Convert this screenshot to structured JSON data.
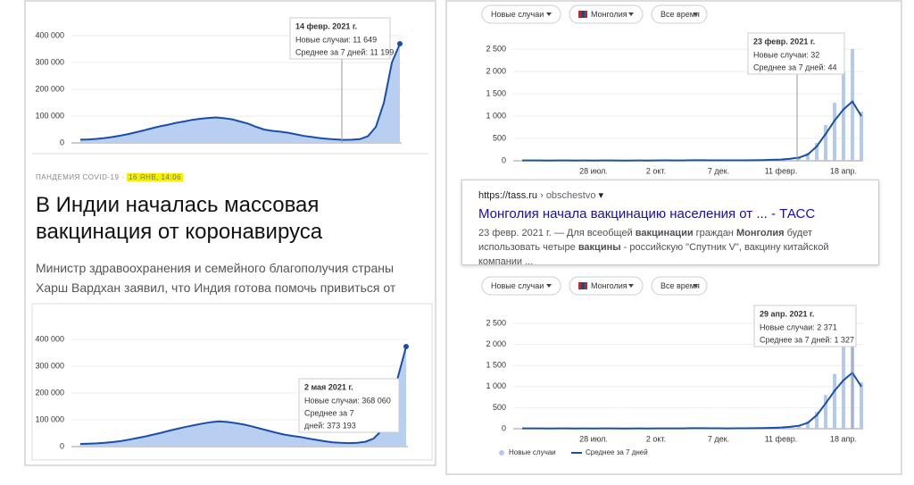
{
  "chart_data": [
    {
      "type": "area",
      "color": "#1a4fa8",
      "area_color": "#b9cff2",
      "values": [
        12000,
        13000,
        15000,
        18000,
        22000,
        27000,
        33000,
        40000,
        47000,
        55000,
        62000,
        68000,
        75000,
        80000,
        86000,
        90000,
        93000,
        95000,
        92000,
        88000,
        80000,
        72000,
        60000,
        50000,
        45000,
        42000,
        38000,
        32000,
        26000,
        22000,
        18000,
        15000,
        13000,
        11199,
        12000,
        14000,
        25000,
        60000,
        150000,
        300000,
        370000
      ],
      "ylim": [
        0,
        400000
      ],
      "yticks": [
        0,
        {
          "value": 100000,
          "label": "100 000"
        },
        {
          "value": 200000,
          "label": "200 000"
        },
        {
          "value": 300000,
          "label": "300 000"
        },
        {
          "value": 400000,
          "label": "400 000"
        }
      ],
      "tooltip": {
        "date": "14 февр. 2021 г.",
        "lines": [
          "Новые случаи: 11 649",
          "Среднее за 7 дней: 11 199"
        ]
      }
    },
    {
      "type": "area",
      "color": "#1a4fa8",
      "area_color": "#b9cff2",
      "values": [
        10000,
        11000,
        12000,
        14000,
        17000,
        21000,
        26000,
        32000,
        38000,
        45000,
        52000,
        60000,
        67000,
        74000,
        80000,
        86000,
        91000,
        94000,
        92000,
        88000,
        83000,
        76000,
        68000,
        60000,
        52000,
        45000,
        40000,
        36000,
        30000,
        25000,
        20000,
        16000,
        14000,
        13000,
        14000,
        18000,
        30000,
        60000,
        130000,
        260000,
        373193
      ],
      "ylim": [
        0,
        400000
      ],
      "yticks": [
        0,
        {
          "value": 100000,
          "label": "100 000"
        },
        {
          "value": 200000,
          "label": "200 000"
        },
        {
          "value": 300000,
          "label": "300 000"
        },
        {
          "value": 400000,
          "label": "400 000"
        }
      ],
      "tooltip": {
        "date": "2 мая 2021 г.",
        "lines": [
          "Новые случаи: 368 060",
          "Среднее за 7",
          "дней: 373 193"
        ]
      }
    },
    {
      "type": "bar-line",
      "controls": [
        {
          "label": "Новые случаи"
        },
        {
          "label": "Монголия"
        },
        {
          "label": "Все время"
        }
      ],
      "categories": [
        null,
        null,
        null,
        null,
        null,
        null,
        null,
        null,
        "28 июл.",
        null,
        null,
        null,
        null,
        null,
        null,
        "2 окт.",
        null,
        null,
        null,
        null,
        null,
        null,
        "7 дек.",
        null,
        null,
        null,
        null,
        null,
        null,
        "11 февр.",
        null,
        null,
        null,
        null,
        null,
        null,
        "18 апр.",
        null,
        null
      ],
      "series": [
        {
          "name": "Новые случаи",
          "color": "#b3c9ee",
          "values": [
            10,
            5,
            8,
            3,
            12,
            6,
            4,
            9,
            5,
            7,
            10,
            4,
            6,
            8,
            3,
            9,
            12,
            5,
            7,
            20,
            15,
            8,
            10,
            6,
            12,
            9,
            14,
            18,
            25,
            30,
            32,
            60,
            180,
            400,
            800,
            1300,
            2000,
            2500,
            1100
          ]
        },
        {
          "name": "Среднее за 7 дней",
          "color": "#1a4fa8",
          "values": [
            8,
            7,
            7,
            6,
            8,
            7,
            6,
            7,
            6,
            7,
            8,
            6,
            6,
            7,
            6,
            8,
            9,
            7,
            8,
            12,
            13,
            11,
            10,
            9,
            10,
            11,
            13,
            16,
            22,
            28,
            44,
            70,
            140,
            320,
            600,
            900,
            1150,
            1327,
            1000
          ]
        }
      ],
      "ylim": [
        0,
        2700
      ],
      "yticks": [
        0,
        500,
        {
          "value": 1000,
          "label": "1 000"
        },
        {
          "value": 1500,
          "label": "1 500"
        },
        {
          "value": 2000,
          "label": "2 000"
        },
        {
          "value": 2500,
          "label": "2 500"
        }
      ],
      "tooltip": {
        "date": "23 февр. 2021 г.",
        "lines": [
          "Новые случаи: 32",
          "Среднее за 7 дней: 44"
        ]
      }
    },
    {
      "type": "bar-line",
      "legend": "bottom-left",
      "controls": [
        {
          "label": "Новые случаи"
        },
        {
          "label": "Монголия"
        },
        {
          "label": "Все время"
        }
      ],
      "categories": [
        null,
        null,
        null,
        null,
        null,
        null,
        null,
        null,
        "28 июл.",
        null,
        null,
        null,
        null,
        null,
        null,
        "2 окт.",
        null,
        null,
        null,
        null,
        null,
        null,
        "7 дек.",
        null,
        null,
        null,
        null,
        null,
        null,
        "11 февр.",
        null,
        null,
        null,
        null,
        null,
        null,
        "18 апр.",
        null,
        null
      ],
      "series": [
        {
          "name": "Новые случаи",
          "color": "#b3c9ee",
          "values": [
            10,
            5,
            8,
            3,
            12,
            6,
            4,
            9,
            5,
            7,
            10,
            4,
            6,
            8,
            3,
            9,
            12,
            5,
            7,
            20,
            15,
            8,
            10,
            6,
            12,
            9,
            14,
            18,
            25,
            30,
            32,
            60,
            180,
            400,
            800,
            1300,
            2000,
            2371,
            1100
          ]
        },
        {
          "name": "Среднее за 7 дней",
          "color": "#1a4fa8",
          "values": [
            8,
            7,
            7,
            6,
            8,
            7,
            6,
            7,
            6,
            7,
            8,
            6,
            6,
            7,
            6,
            8,
            9,
            7,
            8,
            12,
            13,
            11,
            10,
            9,
            10,
            11,
            13,
            16,
            22,
            28,
            44,
            70,
            140,
            320,
            600,
            900,
            1150,
            1327,
            1000
          ]
        }
      ],
      "ylim": [
        0,
        2700
      ],
      "yticks": [
        0,
        500,
        {
          "value": 1000,
          "label": "1 000"
        },
        {
          "value": 1500,
          "label": "1 500"
        },
        {
          "value": 2000,
          "label": "2 000"
        },
        {
          "value": 2500,
          "label": "2 500"
        }
      ],
      "tooltip": {
        "date": "29 апр. 2021 г.",
        "lines": [
          "Новые случаи: 2 371",
          "Среднее за 7 дней: 1 327"
        ]
      }
    }
  ],
  "article": {
    "rubric": "ПАНДЕМИЯ COVID-19",
    "date": "16 ЯНВ, 14:06",
    "title": "В Индии началась массовая вакцинация от коронавируса",
    "lead": "Министр здравоохранения и семейного благополучия страны Харш Вардхан заявил, что Индия готова помочь привиться от"
  },
  "search_result": {
    "site": "https://tass.ru",
    "path": "› obschestvo",
    "title": "Монголия начала вакцинацию населения от ... - ТАСС",
    "snippet": [
      {
        "text": "23 февр. 2021 г. — Для всеобщей ",
        "bold": false
      },
      {
        "text": "вакцинации",
        "bold": true
      },
      {
        "text": " граждан ",
        "bold": false
      },
      {
        "text": "Монголия",
        "bold": true
      },
      {
        "text": " будет использовать четыре ",
        "bold": false
      },
      {
        "text": "вакцины",
        "bold": true
      },
      {
        "text": " - российскую \"Спутник V\", вакцину китайской компании ...",
        "bold": false
      }
    ]
  }
}
